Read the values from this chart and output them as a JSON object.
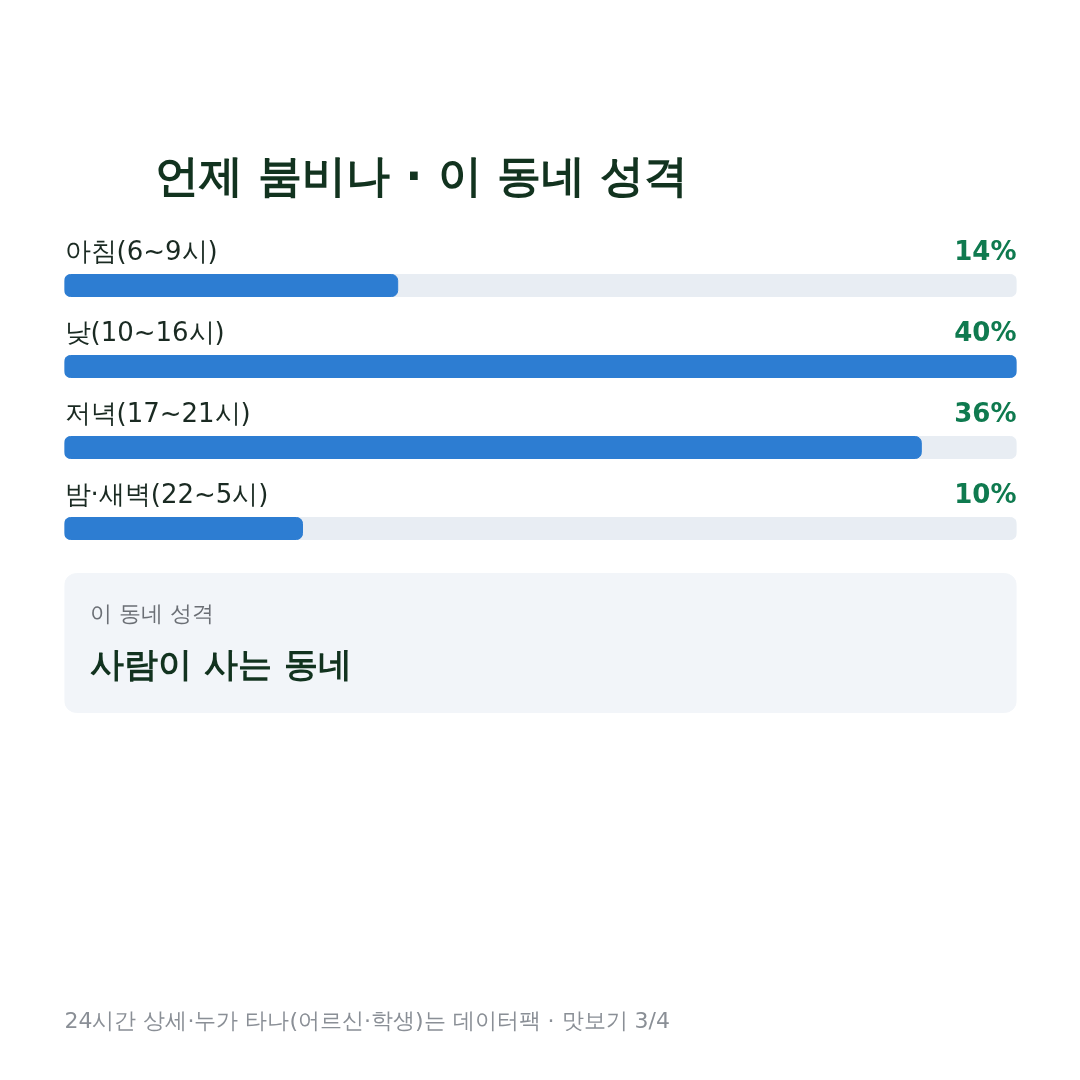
{
  "chart_data": {
    "type": "bar",
    "orientation": "horizontal",
    "title": "언제 붐비나 · 이 동네 성격",
    "categories": [
      "아침(6~9시)",
      "낮(10~16시)",
      "저녁(17~21시)",
      "밤·새벽(22~5시)"
    ],
    "values": [
      14,
      40,
      36,
      10
    ],
    "value_labels": [
      "14%",
      "40%",
      "36%",
      "10%"
    ],
    "color": "#2d7dd2",
    "xlim": [
      0,
      40
    ],
    "annotations": [
      "이 동네 성격",
      "사람이 사는 동네",
      "24시간 상세·누가 타나(어르신·학생)는 데이터팩 · 맛보기 3/4"
    ]
  }
}
